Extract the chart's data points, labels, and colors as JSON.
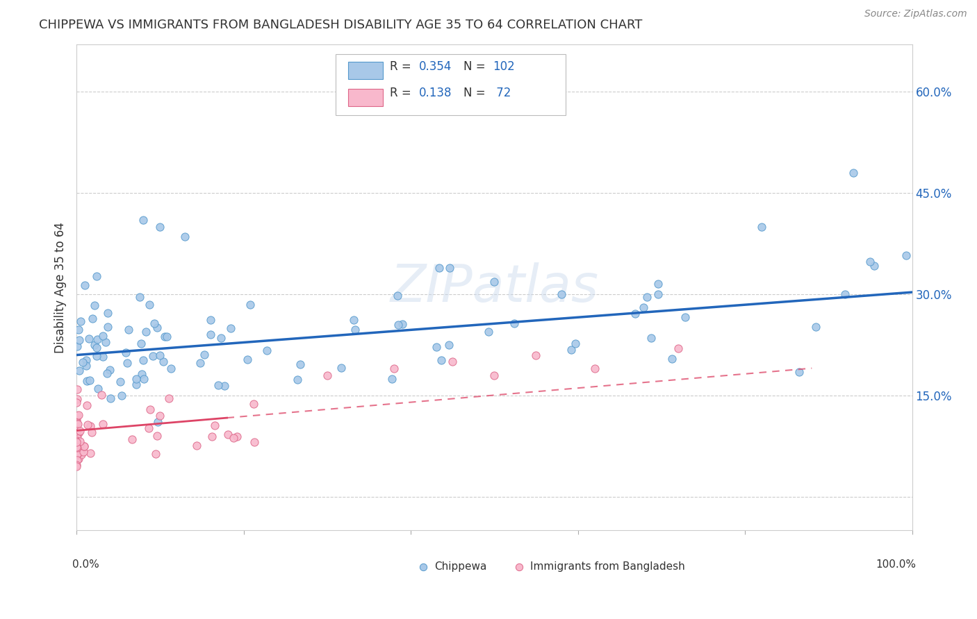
{
  "title": "CHIPPEWA VS IMMIGRANTS FROM BANGLADESH DISABILITY AGE 35 TO 64 CORRELATION CHART",
  "source": "Source: ZipAtlas.com",
  "ylabel": "Disability Age 35 to 64",
  "y_tick_positions": [
    0.0,
    0.15,
    0.3,
    0.45,
    0.6
  ],
  "y_tick_labels": [
    "",
    "15.0%",
    "30.0%",
    "45.0%",
    "60.0%"
  ],
  "x_tick_positions": [
    0.0,
    0.2,
    0.4,
    0.6,
    0.8,
    1.0
  ],
  "series1_color": "#a8c8e8",
  "series1_edge": "#5599cc",
  "series2_color": "#f8b8cc",
  "series2_edge": "#dd6688",
  "trend1_color": "#2266bb",
  "trend2_color": "#dd4466",
  "watermark": "ZIPatlas",
  "background": "#ffffff",
  "grid_color": "#cccccc",
  "title_color": "#333333",
  "legend_r_color": "#2266bb",
  "legend_n_color": "#2266bb",
  "ymin": -0.05,
  "ymax": 0.67,
  "xmin": 0.0,
  "xmax": 1.0
}
